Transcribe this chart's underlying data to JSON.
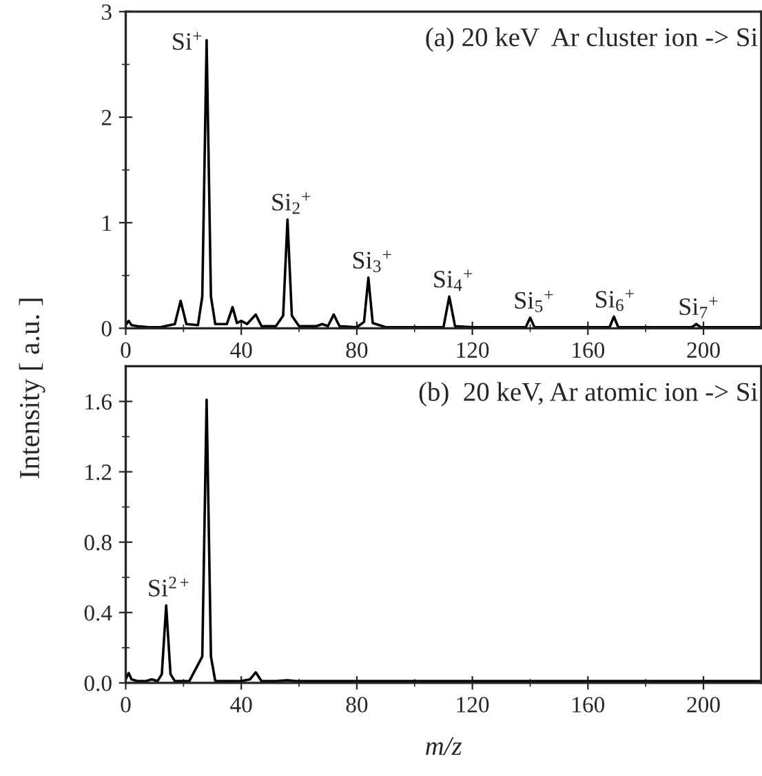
{
  "chart_data": [
    {
      "type": "line",
      "ylabel": "Intensity [ a.u. ]",
      "xlim": [
        0,
        220
      ],
      "xticks": [
        0,
        40,
        80,
        120,
        160,
        200
      ],
      "ylim": [
        0,
        3
      ],
      "yticks": [
        0,
        1,
        2,
        3
      ],
      "grid": false,
      "legend": false,
      "marker": "none",
      "line_style": "solid",
      "annotations": [
        "(a) 20 keV  Ar cluster ion -> Si",
        {
          "text": "Si$^{+}$",
          "x": 28,
          "y": 2.73
        },
        {
          "text": "Si$_{2}$$^{+}$",
          "x": 56,
          "y": 1.03
        },
        {
          "text": "Si$_{3}$$^{+}$",
          "x": 84,
          "y": 0.48
        },
        {
          "text": "Si$_{4}$$^{+}$",
          "x": 112,
          "y": 0.3
        },
        {
          "text": "Si$_{5}$$^{+}$",
          "x": 140,
          "y": 0.1
        },
        {
          "text": "Si$_{6}$$^{+}$",
          "x": 168,
          "y": 0.11
        },
        {
          "text": "Si$_{7}$$^{+}$",
          "x": 197,
          "y": 0.04
        }
      ],
      "series": [
        {
          "color": "#000000",
          "x": [
            0,
            1,
            2,
            4,
            8,
            12,
            17,
            19,
            21,
            25,
            26.5,
            28,
            29.5,
            31,
            35,
            37,
            38.5,
            40,
            42,
            45,
            47,
            52,
            54.5,
            56,
            57.5,
            60,
            66,
            68,
            70,
            72,
            74,
            80,
            82.5,
            84,
            85.5,
            90,
            100,
            110,
            112,
            114,
            120,
            130,
            138.5,
            140,
            141.5,
            150,
            160,
            167.5,
            169,
            170.5,
            180,
            190,
            196,
            197.5,
            199,
            210,
            220
          ],
          "values": [
            0.03,
            0.07,
            0.03,
            0.02,
            0.01,
            0.01,
            0.04,
            0.26,
            0.04,
            0.03,
            0.3,
            2.73,
            0.3,
            0.04,
            0.04,
            0.2,
            0.05,
            0.07,
            0.04,
            0.13,
            0.02,
            0.02,
            0.12,
            1.03,
            0.12,
            0.02,
            0.02,
            0.04,
            0.02,
            0.13,
            0.02,
            0.01,
            0.06,
            0.48,
            0.05,
            0.01,
            0.01,
            0.01,
            0.3,
            0.02,
            0.01,
            0.01,
            0.01,
            0.1,
            0.01,
            0.01,
            0.01,
            0.01,
            0.11,
            0.01,
            0.01,
            0.01,
            0.01,
            0.04,
            0.01,
            0.01,
            0.01
          ]
        }
      ]
    },
    {
      "type": "line",
      "xlabel": "m/z",
      "xlim": [
        0,
        220
      ],
      "xticks": [
        0,
        40,
        80,
        120,
        160,
        200
      ],
      "ylim": [
        0,
        1.8
      ],
      "yticks": [
        {
          "value": 0,
          "label": "0.0"
        },
        0.4,
        0.8,
        1.2,
        1.6
      ],
      "grid": false,
      "legend": false,
      "marker": "none",
      "line_style": "solid",
      "annotations": [
        "(b)  20 keV, Ar atomic ion -> Si",
        {
          "text": "Si$^{2+}$",
          "x": 14,
          "y": 0.44
        }
      ],
      "series": [
        {
          "color": "#000000",
          "x": [
            0,
            1,
            2,
            4,
            7,
            9,
            11,
            12.5,
            14,
            15.5,
            17,
            22,
            26.5,
            28,
            29.5,
            31,
            40,
            43,
            45,
            47,
            52,
            56,
            59,
            70,
            90,
            110,
            130,
            150,
            170,
            190,
            210,
            220
          ],
          "values": [
            0.02,
            0.056,
            0.02,
            0.01,
            0.01,
            0.02,
            0.01,
            0.05,
            0.44,
            0.05,
            0.01,
            0.01,
            0.15,
            1.61,
            0.15,
            0.01,
            0.01,
            0.02,
            0.06,
            0.01,
            0.01,
            0.015,
            0.01,
            0.01,
            0.01,
            0.01,
            0.01,
            0.01,
            0.01,
            0.01,
            0.01,
            0.01
          ]
        }
      ]
    }
  ]
}
